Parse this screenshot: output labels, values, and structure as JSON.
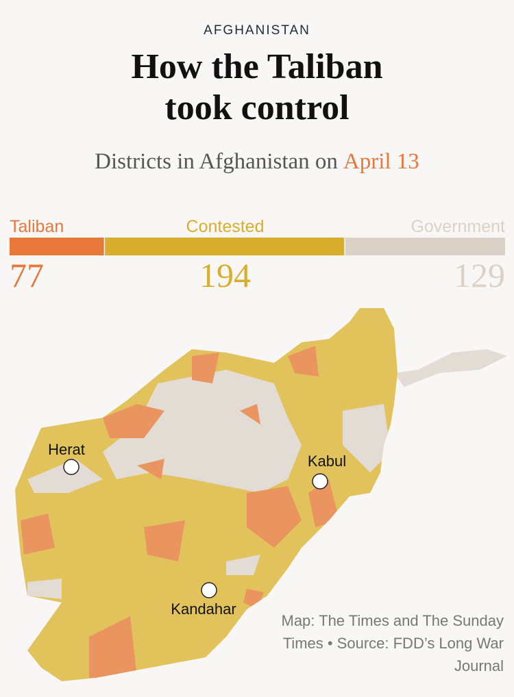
{
  "kicker": "AFGHANISTAN",
  "title": "How the Taliban took control",
  "subtitle": {
    "text": "Districts in Afghanistan on",
    "date": "April 13"
  },
  "chart_data": {
    "type": "stacked-bar",
    "series": [
      {
        "name": "Taliban",
        "color": "#e8773a",
        "values": [
          77
        ]
      },
      {
        "name": "Contested",
        "color": "#d9ae2e",
        "values": [
          194
        ]
      },
      {
        "name": "Government",
        "color": "#dcd1c6",
        "values": [
          129
        ]
      }
    ]
  },
  "map": {
    "cities": [
      {
        "name": "Herat"
      },
      {
        "name": "Kabul"
      },
      {
        "name": "Kandahar"
      }
    ]
  },
  "credit": "Map: The Times and The Sunday Times • Source: FDD’s Long War Journal"
}
